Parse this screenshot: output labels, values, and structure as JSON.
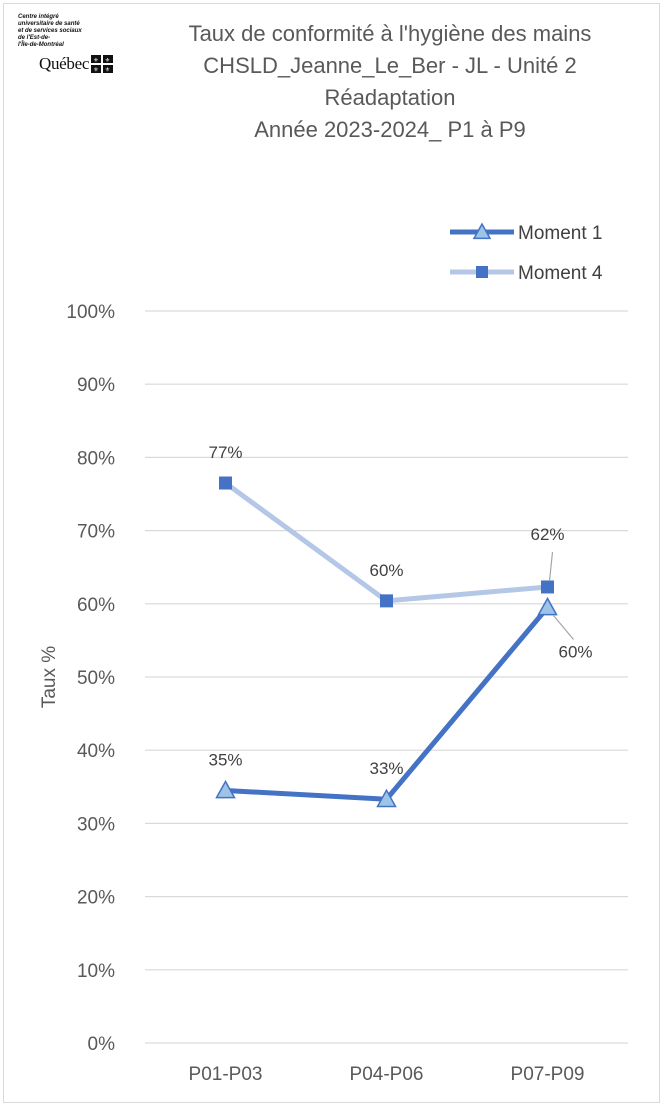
{
  "logo": {
    "lines": [
      "Centre intégré",
      "universitaire de santé",
      "et de services sociaux",
      "de l'Est-de-",
      "l'Île-de-Montréal"
    ],
    "wordmark": "Québec"
  },
  "title_lines": [
    "Taux de conformité à l'hygiène des mains",
    "CHSLD_Jeanne_Le_Ber - JL - Unité 2",
    "Réadaptation",
    "Année 2023-2024_ P1 à P9"
  ],
  "chart_data": {
    "type": "line",
    "categories": [
      "P01-P03",
      "P04-P06",
      "P07-P09"
    ],
    "ylabel": "Taux %",
    "xlabel": "",
    "ylim": [
      0,
      1
    ],
    "yticks": [
      "0%",
      "10%",
      "20%",
      "30%",
      "40%",
      "50%",
      "60%",
      "70%",
      "80%",
      "90%",
      "100%"
    ],
    "grid": true,
    "legend_position": "top-right",
    "series": [
      {
        "name": "Moment 1",
        "values": [
          0.345,
          0.333,
          0.595
        ],
        "labels": [
          "35%",
          "33%",
          "60%"
        ],
        "color": "#4472c4",
        "marker": "triangle"
      },
      {
        "name": "Moment 4",
        "values": [
          0.765,
          0.604,
          0.623
        ],
        "labels": [
          "77%",
          "60%",
          "62%"
        ],
        "color": "#b4c7e7",
        "marker": "square"
      }
    ]
  }
}
